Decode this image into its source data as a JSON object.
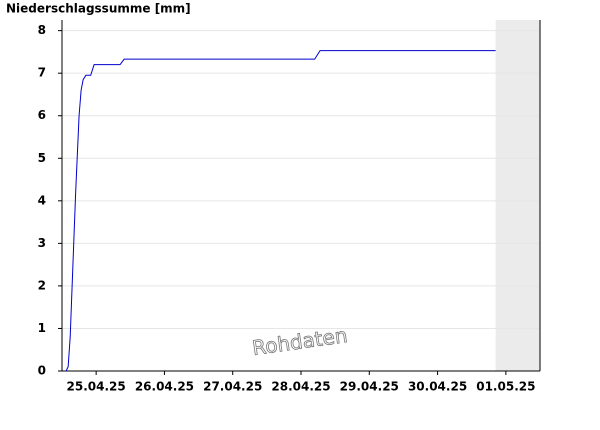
{
  "chart_data": {
    "type": "line",
    "title": "Niederschlagssumme [mm]",
    "watermark": "Rohdaten",
    "x": [
      0.06,
      0.09,
      0.12,
      0.16,
      0.2,
      0.25,
      0.28,
      0.31,
      0.35,
      0.42,
      0.47,
      0.85,
      0.91,
      3.7,
      3.78,
      6.35
    ],
    "series": [
      {
        "color": "#0000cc",
        "values": [
          0,
          0.1,
          0.8,
          2.5,
          4.2,
          6.0,
          6.6,
          6.85,
          6.95,
          6.95,
          7.2,
          7.2,
          7.33,
          7.33,
          7.53,
          7.53
        ]
      }
    ],
    "xlim": [
      0,
      7
    ],
    "ylim": [
      0,
      8.25
    ],
    "xticks": [
      {
        "value": 0.5,
        "label": "25.04.25"
      },
      {
        "value": 1.5,
        "label": "26.04.25"
      },
      {
        "value": 2.5,
        "label": "27.04.25"
      },
      {
        "value": 3.5,
        "label": "28.04.25"
      },
      {
        "value": 4.5,
        "label": "29.04.25"
      },
      {
        "value": 5.5,
        "label": "30.04.25"
      },
      {
        "value": 6.5,
        "label": "01.05.25"
      }
    ],
    "yticks": [
      0,
      1,
      2,
      3,
      4,
      5,
      6,
      7,
      8
    ],
    "shade_from": 6.35,
    "grid": true
  }
}
